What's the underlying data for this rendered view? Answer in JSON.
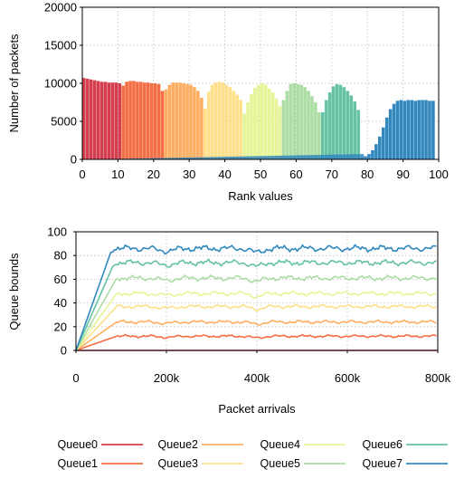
{
  "chart_data": [
    {
      "type": "bar",
      "xlabel": "Rank values",
      "ylabel": "Number of packets",
      "xlim": [
        0,
        100
      ],
      "ylim": [
        0,
        20000
      ],
      "xticks": [
        0,
        10,
        20,
        30,
        40,
        50,
        60,
        70,
        80,
        90,
        100
      ],
      "yticks": [
        0,
        5000,
        10000,
        15000,
        20000
      ],
      "grid": true,
      "series": [
        {
          "name": "Queue0",
          "color": "#d53e4f",
          "values": [
            10700,
            10600,
            10500,
            10400,
            10300,
            10200,
            10200,
            10100,
            10100,
            10100,
            10000
          ]
        },
        {
          "name": "Queue1",
          "color": "#f46d43",
          "values": [
            9700,
            10200,
            10300,
            10300,
            10200,
            10200,
            10100,
            10100,
            10000,
            10000,
            9900,
            9000
          ]
        },
        {
          "name": "Queue2",
          "color": "#fdae61",
          "values": [
            9200,
            9800,
            10100,
            10100,
            10100,
            10000,
            9900,
            9800,
            9500,
            9000,
            8100
          ]
        },
        {
          "name": "Queue3",
          "color": "#fee08b",
          "values": [
            6700,
            8900,
            9800,
            10100,
            10200,
            10100,
            9800,
            9500,
            9000,
            8500,
            7800
          ]
        },
        {
          "name": "Queue4",
          "color": "#e6f598",
          "values": [
            6000,
            7500,
            8600,
            9400,
            9800,
            10000,
            9800,
            9300,
            8800,
            8000,
            7000
          ]
        },
        {
          "name": "Queue5",
          "color": "#abdda4",
          "values": [
            7800,
            9000,
            9900,
            10000,
            9900,
            9800,
            9500,
            9000,
            8300,
            7500,
            6200
          ]
        },
        {
          "name": "Queue6",
          "color": "#66c2a5",
          "values": [
            6200,
            7800,
            8800,
            9600,
            9900,
            9800,
            9500,
            9000,
            8400,
            7600,
            6500
          ]
        },
        {
          "name": "Queue7",
          "color": "#3288bd",
          "values": [
            200,
            400,
            700,
            1200,
            2000,
            3000,
            4200,
            5500,
            6600,
            7300,
            7700,
            7800,
            7700,
            7800,
            7800,
            7700,
            7800,
            7800,
            7800,
            7700,
            7700
          ]
        }
      ]
    },
    {
      "type": "line",
      "xlabel": "Packet arrivals",
      "ylabel": "Queue bounds",
      "xlim": [
        0,
        800000
      ],
      "ylim": [
        0,
        100
      ],
      "xticks": [
        0,
        200000,
        400000,
        600000,
        800000
      ],
      "xtick_labels": [
        "0",
        "200k",
        "400k",
        "600k",
        "800k"
      ],
      "yticks": [
        0,
        20,
        40,
        60,
        80,
        100
      ],
      "grid": true,
      "legend_position": "bottom",
      "series": [
        {
          "name": "Queue0",
          "color": "#d53e4f",
          "plateau": 0,
          "ramp_end": 0
        },
        {
          "name": "Queue1",
          "color": "#f46d43",
          "plateau": 12,
          "ramp_end": 90000
        },
        {
          "name": "Queue2",
          "color": "#fdae61",
          "plateau": 24,
          "ramp_end": 90000
        },
        {
          "name": "Queue3",
          "color": "#fee08b",
          "plateau": 37,
          "ramp_end": 90000
        },
        {
          "name": "Queue4",
          "color": "#e6f598",
          "plateau": 48,
          "ramp_end": 90000
        },
        {
          "name": "Queue5",
          "color": "#abdda4",
          "plateau": 61,
          "ramp_end": 90000
        },
        {
          "name": "Queue6",
          "color": "#66c2a5",
          "plateau": 74,
          "ramp_end": 85000
        },
        {
          "name": "Queue7",
          "color": "#3288bd",
          "plateau": 86,
          "ramp_end": 80000
        }
      ]
    }
  ],
  "legend": {
    "items": [
      {
        "label": "Queue0",
        "color": "#d53e4f"
      },
      {
        "label": "Queue1",
        "color": "#f46d43"
      },
      {
        "label": "Queue2",
        "color": "#fdae61"
      },
      {
        "label": "Queue3",
        "color": "#fee08b"
      },
      {
        "label": "Queue4",
        "color": "#e6f598"
      },
      {
        "label": "Queue5",
        "color": "#abdda4"
      },
      {
        "label": "Queue6",
        "color": "#66c2a5"
      },
      {
        "label": "Queue7",
        "color": "#3288bd"
      }
    ]
  }
}
